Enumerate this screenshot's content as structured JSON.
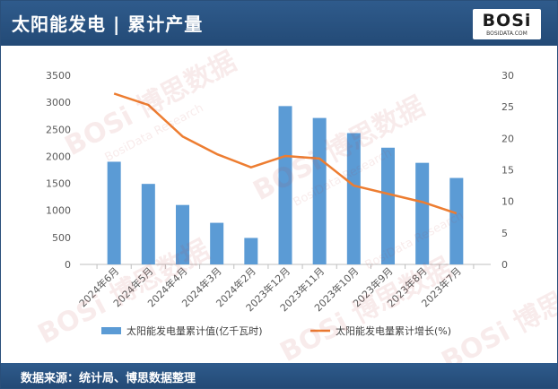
{
  "header": {
    "title": "太阳能发电 | 累计产量"
  },
  "logo": {
    "text": "BOSi",
    "subtext": "BOSIDATA.COM"
  },
  "footer": {
    "source": "数据来源：统计局、博思数据整理"
  },
  "watermark": {
    "brand": "BOSi 博思数据",
    "site": "BosiData Research"
  },
  "colors": {
    "bar": "#5b9bd5",
    "line": "#ed7d31",
    "header_bg": "#2a5584"
  },
  "chart_data": {
    "type": "bar",
    "categories": [
      "2024年6月",
      "2024年5月",
      "2024年4月",
      "2024年3月",
      "2024年2月",
      "2023年12月",
      "2023年11月",
      "2023年10月",
      "2023年9月",
      "2023年8月",
      "2023年7月"
    ],
    "series": [
      {
        "name": "太阳能发电量累计值(亿千瓦时)",
        "type": "bar",
        "axis": "left",
        "values": [
          1900,
          1490,
          1100,
          770,
          490,
          2930,
          2710,
          2430,
          2160,
          1880,
          1600
        ]
      },
      {
        "name": "太阳能发电量累计增长(%)",
        "type": "line",
        "axis": "right",
        "values": [
          27.1,
          25.3,
          20.3,
          17.5,
          15.4,
          17.2,
          16.8,
          12.5,
          11.2,
          9.9,
          8.1
        ]
      }
    ],
    "left_axis": {
      "min": 0,
      "max": 3500,
      "ticks": [
        0,
        500,
        1000,
        1500,
        2000,
        2500,
        3000,
        3500
      ]
    },
    "right_axis": {
      "min": 0,
      "max": 30,
      "ticks": [
        0,
        5,
        10,
        15,
        20,
        25,
        30
      ]
    },
    "grid": false,
    "legend_position": "bottom"
  }
}
